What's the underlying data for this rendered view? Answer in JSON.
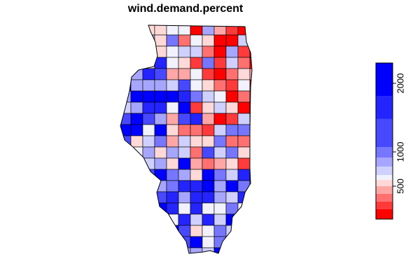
{
  "map": {
    "title": "wind.demand.percent",
    "legend": {
      "breaks": [
        20,
        163,
        276,
        388,
        500,
        592,
        663,
        786,
        918,
        1071,
        1480,
        1816,
        2296
      ],
      "colors": [
        "#ff0000",
        "#ff3a3a",
        "#ff7070",
        "#ffa6a6",
        "#ffd8d8",
        "#f2f2ff",
        "#d0d0ff",
        "#a6a6ff",
        "#7676ff",
        "#4848ff",
        "#2424ff",
        "#0000ff"
      ],
      "ticks": [
        500,
        1000,
        2000
      ]
    }
  }
}
